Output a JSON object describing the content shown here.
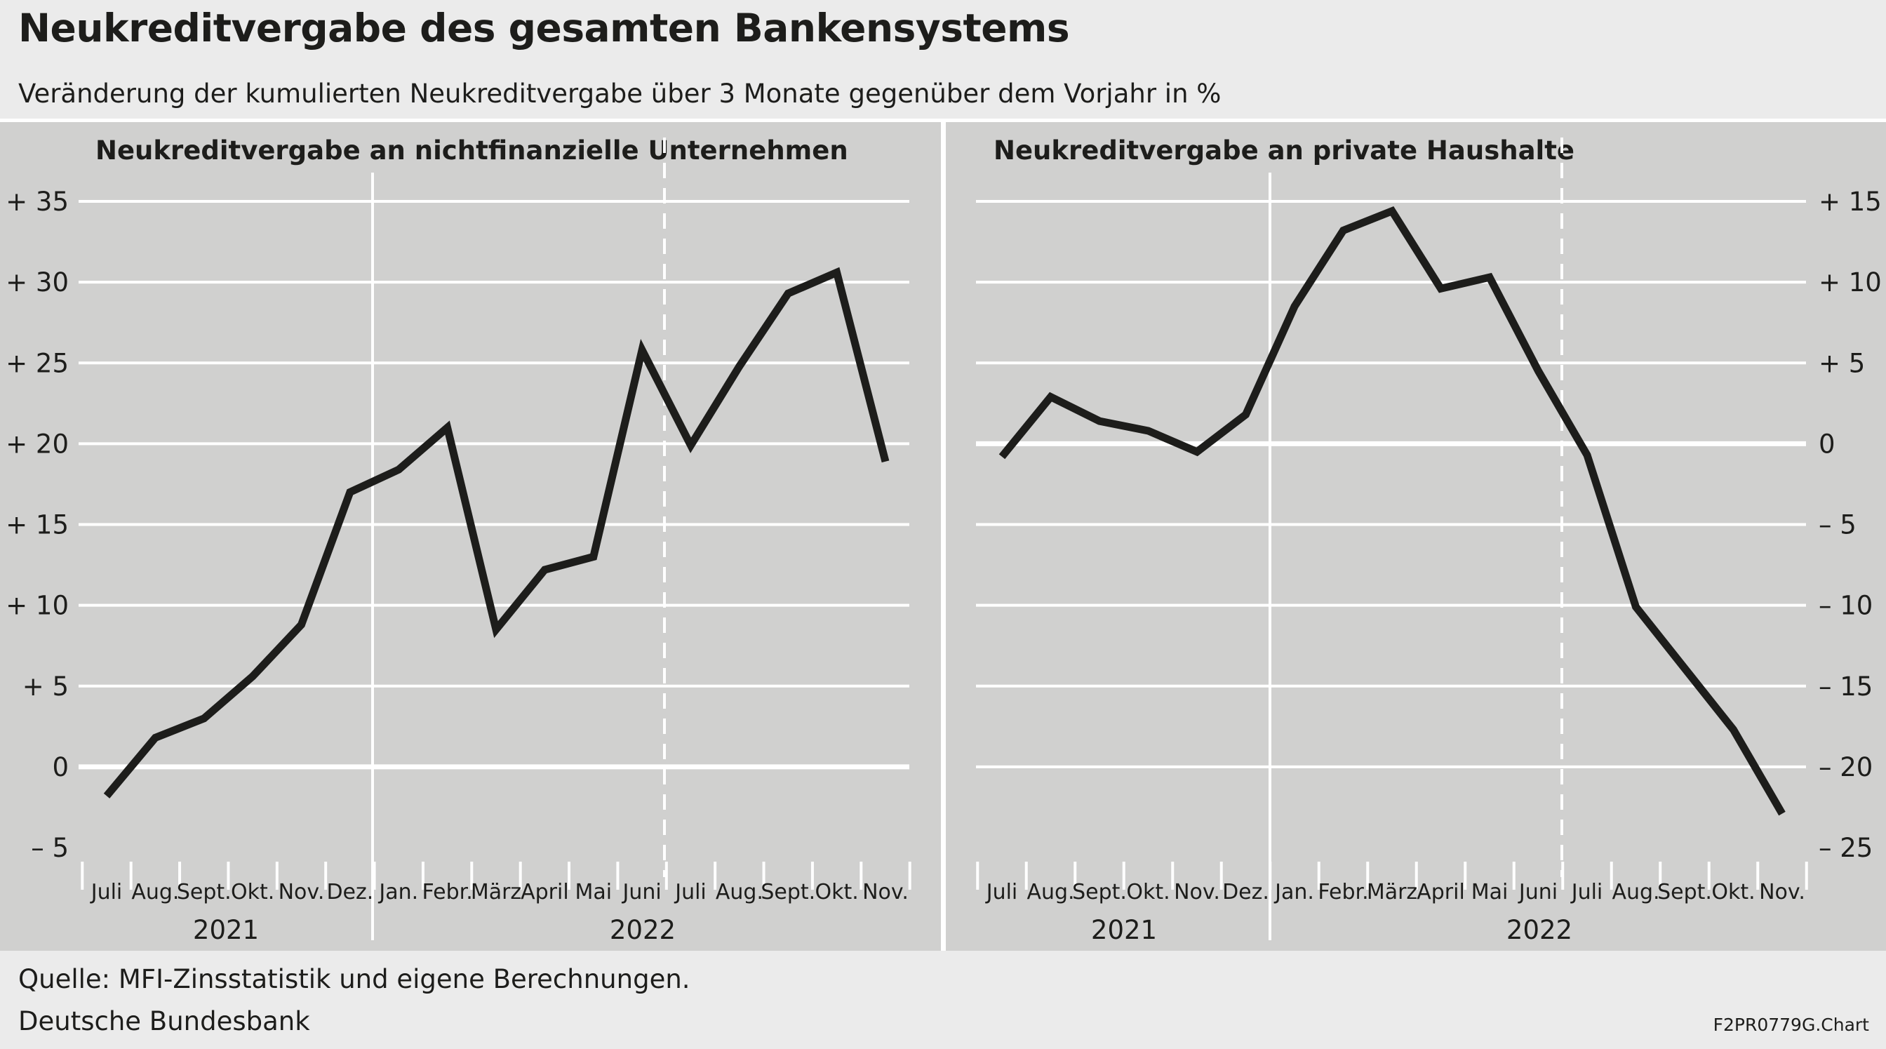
{
  "header": {
    "title": "Neukreditvergabe des gesamten Bankensystems",
    "subtitle": "Veränderung der kumulierten Neukreditvergabe über 3 Monate gegenüber dem Vorjahr in %"
  },
  "footer": {
    "source": "Quelle: MFI-Zinsstatistik und eigene Berechnungen.",
    "org": "Deutsche Bundesbank",
    "code": "F2PR0779G.Chart"
  },
  "colors": {
    "background": "#ebebeb",
    "panel": "#d0d0cf",
    "grid": "#ffffff",
    "line": "#1d1d1b"
  },
  "chart_data": [
    {
      "type": "line",
      "title": "Neukreditvergabe an nichtfinanzielle Unternehmen",
      "xlabel": "",
      "ylabel": "",
      "axis_side": "left",
      "categories": [
        "Juli",
        "Aug.",
        "Sept.",
        "Okt.",
        "Nov.",
        "Dez.",
        "Jan.",
        "Febr.",
        "März",
        "April",
        "Mai",
        "Juni",
        "Juli",
        "Aug.",
        "Sept.",
        "Okt.",
        "Nov."
      ],
      "year_labels": [
        "2021",
        "2022"
      ],
      "year_split_index": 6,
      "dashed_after_index": 11,
      "ylim": [
        -5,
        35
      ],
      "yticks": [
        -5,
        0,
        5,
        10,
        15,
        20,
        25,
        30,
        35
      ],
      "ytick_labels": [
        "–  5",
        "0",
        "+  5",
        "+ 10",
        "+ 15",
        "+ 20",
        "+ 25",
        "+ 30",
        "+ 35"
      ],
      "grid": true,
      "series": [
        {
          "values": [
            -1.8,
            1.8,
            3.0,
            5.6,
            8.8,
            17.0,
            18.4,
            21.0,
            8.5,
            12.2,
            13.0,
            25.8,
            19.9,
            24.8,
            29.3,
            30.6,
            18.9
          ]
        }
      ]
    },
    {
      "type": "line",
      "title": "Neukreditvergabe an private Haushalte",
      "xlabel": "",
      "ylabel": "",
      "axis_side": "right",
      "categories": [
        "Juli",
        "Aug.",
        "Sept.",
        "Okt.",
        "Nov.",
        "Dez.",
        "Jan.",
        "Febr.",
        "März",
        "April",
        "Mai",
        "Juni",
        "Juli",
        "Aug.",
        "Sept.",
        "Okt.",
        "Nov."
      ],
      "year_labels": [
        "2021",
        "2022"
      ],
      "year_split_index": 6,
      "dashed_after_index": 11,
      "ylim": [
        -25,
        15
      ],
      "yticks": [
        -25,
        -20,
        -15,
        -10,
        -5,
        0,
        5,
        10,
        15
      ],
      "ytick_labels": [
        "– 25",
        "– 20",
        "– 15",
        "– 10",
        "–  5",
        "0",
        "+  5",
        "+ 10",
        "+ 15"
      ],
      "grid": true,
      "series": [
        {
          "values": [
            -0.8,
            2.9,
            1.4,
            0.8,
            -0.5,
            1.8,
            8.5,
            13.2,
            14.4,
            9.6,
            10.3,
            4.5,
            -0.7,
            -10.1,
            -13.9,
            -17.7,
            -22.9
          ]
        }
      ]
    }
  ]
}
